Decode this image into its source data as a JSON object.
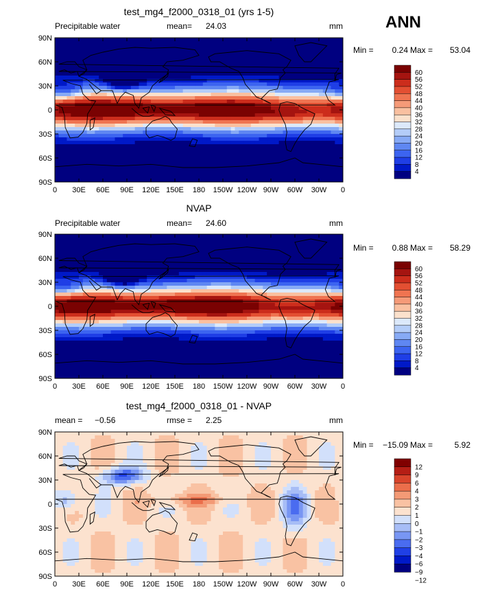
{
  "season": "ANN",
  "colors": {
    "scale_pw": [
      "#000080",
      "#0019c8",
      "#1f3ee6",
      "#3c64f0",
      "#5f87f2",
      "#87aaf5",
      "#b4cdf8",
      "#dce9fb",
      "#fbe1cc",
      "#f9c0a0",
      "#f59a78",
      "#ef7451",
      "#e34f32",
      "#cc2d1c",
      "#a51410",
      "#7a0202"
    ],
    "scale_diff": [
      "#000080",
      "#0019c8",
      "#2040e6",
      "#4a6cf0",
      "#7896f3",
      "#a7bdf6",
      "#d2e0fb",
      "#fce2cf",
      "#f9c2a3",
      "#f39a76",
      "#eb6e4b",
      "#d8442b",
      "#b51e15",
      "#800000"
    ],
    "coast": "#000000"
  },
  "chart_data": [
    {
      "type": "heatmap",
      "title": "test_mg4_f2000_0318_01 (yrs 1-5)",
      "variable": "Precipitable water",
      "mean_label": "mean=",
      "mean": "24.03",
      "units": "mm",
      "min_label": "Min =",
      "min": "0.24",
      "max_label": "Max =",
      "max": "53.04",
      "lat_ticks": [
        "90N",
        "60N",
        "30N",
        "0",
        "30S",
        "60S",
        "90S"
      ],
      "lon_ticks": [
        "0",
        "30E",
        "60E",
        "90E",
        "120E",
        "150E",
        "180",
        "150W",
        "120W",
        "90W",
        "60W",
        "30W",
        "0"
      ],
      "colorbar_levels": [
        "60",
        "56",
        "52",
        "48",
        "44",
        "40",
        "36",
        "32",
        "28",
        "24",
        "20",
        "16",
        "12",
        "8",
        "4"
      ]
    },
    {
      "type": "heatmap",
      "title": "NVAP",
      "variable": "Precipitable water",
      "mean_label": "mean=",
      "mean": "24.60",
      "units": "mm",
      "min_label": "Min =",
      "min": "0.88",
      "max_label": "Max =",
      "max": "58.29",
      "lat_ticks": [
        "90N",
        "60N",
        "30N",
        "0",
        "30S",
        "60S",
        "90S"
      ],
      "lon_ticks": [
        "0",
        "30E",
        "60E",
        "90E",
        "120E",
        "150E",
        "180",
        "150W",
        "120W",
        "90W",
        "60W",
        "30W",
        "0"
      ],
      "colorbar_levels": [
        "60",
        "56",
        "52",
        "48",
        "44",
        "40",
        "36",
        "32",
        "28",
        "24",
        "20",
        "16",
        "12",
        "8",
        "4"
      ]
    },
    {
      "type": "heatmap",
      "title": "test_mg4_f2000_0318_01 - NVAP",
      "mean_label": "mean =",
      "mean": "−0.56",
      "rmse_label": "rmse =",
      "rmse": "2.25",
      "units": "mm",
      "min_label": "Min =",
      "min": "−15.09",
      "max_label": "Max =",
      "max": "5.92",
      "lat_ticks": [
        "90N",
        "60N",
        "30N",
        "0",
        "30S",
        "60S",
        "90S"
      ],
      "lon_ticks": [
        "0",
        "30E",
        "60E",
        "90E",
        "120E",
        "150E",
        "180",
        "150W",
        "120W",
        "90W",
        "60W",
        "30W",
        "0"
      ],
      "colorbar_levels": [
        "12",
        "9",
        "6",
        "4",
        "3",
        "2",
        "1",
        "0",
        "−1",
        "−2",
        "−3",
        "−4",
        "−6",
        "−9",
        "−12"
      ]
    }
  ]
}
